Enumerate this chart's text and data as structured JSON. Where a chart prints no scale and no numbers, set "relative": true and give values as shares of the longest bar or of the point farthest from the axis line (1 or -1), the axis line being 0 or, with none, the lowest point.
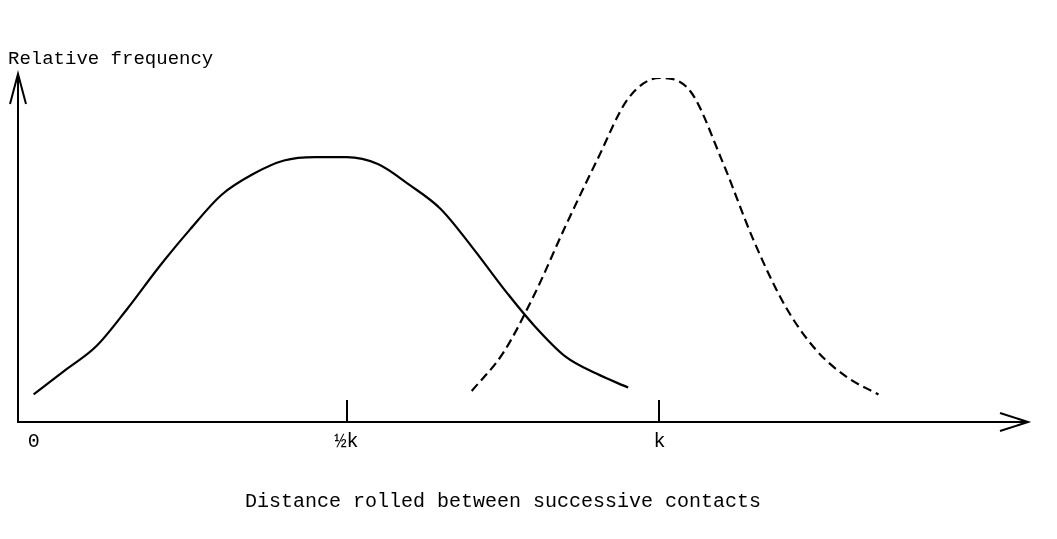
{
  "chart_data": {
    "type": "line",
    "relative": true,
    "xlabel": "Distance rolled between successive contacts",
    "ylabel": "Relative frequency",
    "marker": "none",
    "categories": [
      "0",
      null,
      null,
      null,
      null,
      null,
      null,
      null,
      null,
      null,
      "½k",
      null,
      null,
      null,
      null,
      null,
      null,
      null,
      null,
      null,
      "k",
      null,
      null,
      null,
      null,
      null,
      null,
      null,
      null,
      null,
      null
    ],
    "series": [
      {
        "color": "#000000",
        "line_style": "solid",
        "values": [
          0.08,
          0.15,
          0.22,
          0.33,
          0.45,
          0.56,
          0.66,
          0.72,
          0.76,
          0.77,
          0.77,
          0.75,
          0.69,
          0.62,
          0.51,
          0.39,
          0.28,
          0.19,
          0.14,
          0.1,
          null,
          null,
          null,
          null,
          null,
          null,
          null,
          null,
          null,
          null,
          null
        ]
      },
      {
        "color": "#000000",
        "line_style": "dashed",
        "values": [
          null,
          null,
          null,
          null,
          null,
          null,
          null,
          null,
          null,
          null,
          null,
          null,
          null,
          null,
          0.09,
          0.2,
          0.37,
          0.57,
          0.76,
          0.94,
          1.0,
          0.96,
          0.76,
          0.53,
          0.34,
          0.21,
          0.13,
          0.08,
          null,
          null,
          null
        ]
      }
    ]
  }
}
